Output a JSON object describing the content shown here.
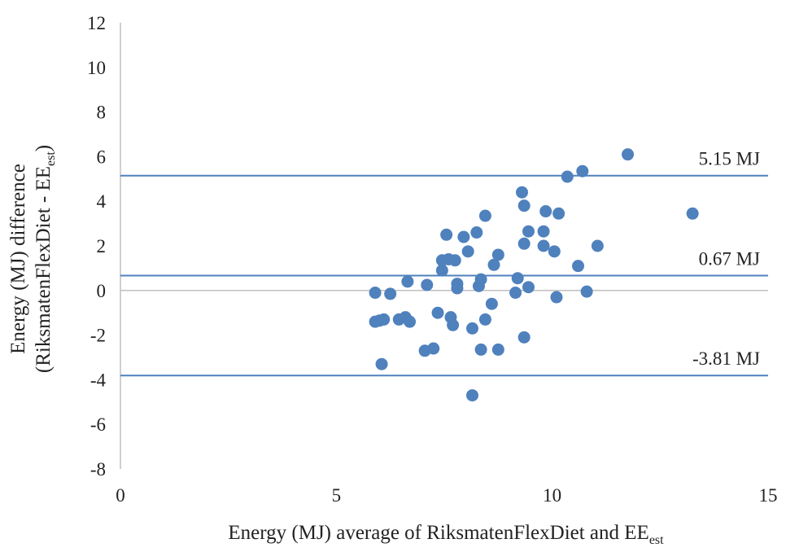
{
  "chart_data": {
    "type": "scatter",
    "title": "",
    "xlabel": {
      "main": "Energy (MJ) average of RiksmatenFlexDiet and EE",
      "sub": "est"
    },
    "ylabel": {
      "line1": "Energy (MJ) difference",
      "line2_main": "(RiksmatenFlexDiet - EE",
      "line2_sub": "est",
      "line2_end": ")"
    },
    "xlim": [
      0,
      15
    ],
    "ylim": [
      -8,
      12
    ],
    "xticks": [
      0,
      5,
      10,
      15
    ],
    "yticks": [
      -8,
      -6,
      -4,
      -2,
      0,
      2,
      4,
      6,
      8,
      10,
      12
    ],
    "grid": false,
    "marker_color": "#4f81bd",
    "line_color": "#4f81bd",
    "zero_line_color": "#bfbfbf",
    "reference_lines": [
      {
        "label": "5.15 MJ",
        "y": 5.15
      },
      {
        "label": "0.67 MJ",
        "y": 0.67
      },
      {
        "label": "-3.81 MJ",
        "y": -3.81
      }
    ],
    "series": [
      {
        "points": [
          [
            5.9,
            -0.1
          ],
          [
            5.9,
            -1.4
          ],
          [
            6.0,
            -1.35
          ],
          [
            6.1,
            -1.3
          ],
          [
            6.05,
            -3.3
          ],
          [
            6.25,
            -0.15
          ],
          [
            6.45,
            -1.3
          ],
          [
            6.6,
            -1.2
          ],
          [
            6.65,
            0.4
          ],
          [
            6.7,
            -1.4
          ],
          [
            7.05,
            -2.7
          ],
          [
            7.1,
            0.25
          ],
          [
            7.25,
            -2.6
          ],
          [
            7.35,
            -1.0
          ],
          [
            7.45,
            0.9
          ],
          [
            7.45,
            1.35
          ],
          [
            7.55,
            2.5
          ],
          [
            7.6,
            1.4
          ],
          [
            7.65,
            -1.2
          ],
          [
            7.7,
            -1.55
          ],
          [
            7.75,
            1.35
          ],
          [
            7.8,
            0.1
          ],
          [
            7.8,
            0.3
          ],
          [
            7.95,
            2.4
          ],
          [
            8.05,
            1.75
          ],
          [
            8.15,
            -1.7
          ],
          [
            8.15,
            -4.7
          ],
          [
            8.25,
            2.6
          ],
          [
            8.3,
            0.2
          ],
          [
            8.35,
            0.5
          ],
          [
            8.35,
            -2.65
          ],
          [
            8.45,
            -1.3
          ],
          [
            8.45,
            3.35
          ],
          [
            8.6,
            -0.6
          ],
          [
            8.65,
            1.15
          ],
          [
            8.75,
            1.6
          ],
          [
            8.75,
            -2.65
          ],
          [
            9.15,
            -0.1
          ],
          [
            9.2,
            0.55
          ],
          [
            9.3,
            4.4
          ],
          [
            9.35,
            3.8
          ],
          [
            9.35,
            2.1
          ],
          [
            9.35,
            -2.1
          ],
          [
            9.45,
            2.65
          ],
          [
            9.45,
            0.15
          ],
          [
            9.8,
            2.0
          ],
          [
            9.8,
            2.65
          ],
          [
            9.85,
            3.55
          ],
          [
            10.05,
            1.75
          ],
          [
            10.1,
            -0.3
          ],
          [
            10.15,
            3.45
          ],
          [
            10.35,
            5.1
          ],
          [
            10.6,
            1.1
          ],
          [
            10.7,
            5.35
          ],
          [
            10.8,
            -0.05
          ],
          [
            11.05,
            2.0
          ],
          [
            11.75,
            6.1
          ],
          [
            13.25,
            3.45
          ]
        ]
      }
    ]
  }
}
